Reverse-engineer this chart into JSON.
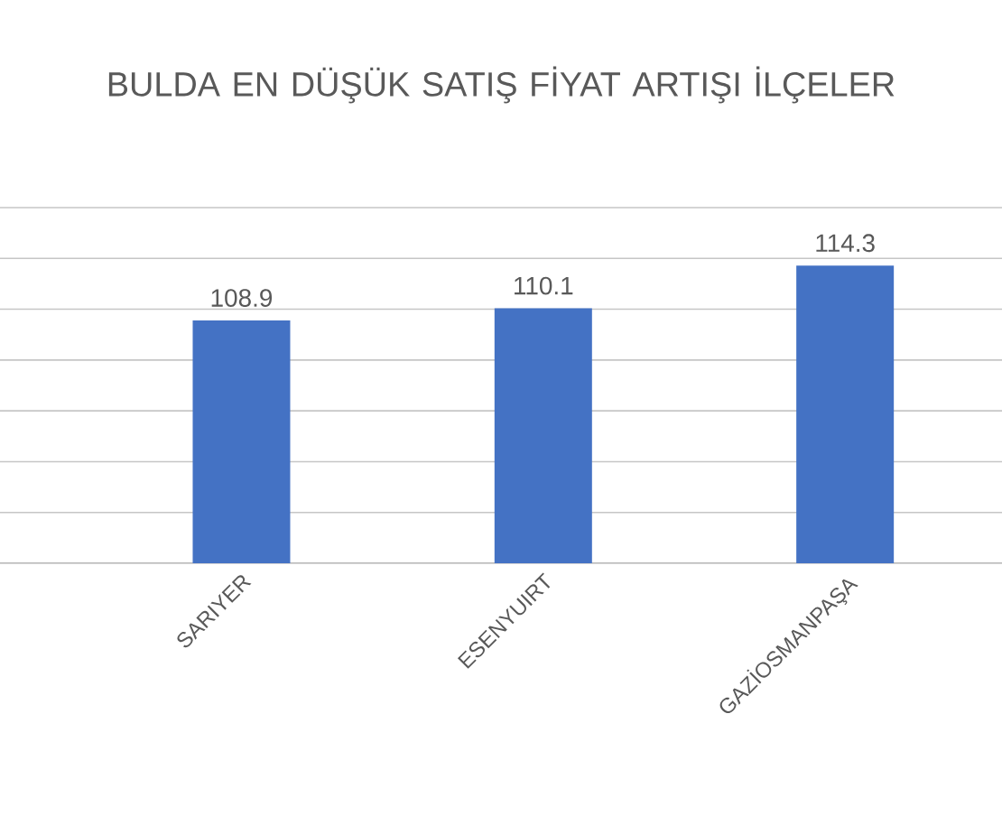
{
  "chart_data": {
    "type": "bar",
    "title": "BULDA EN DÜŞÜK SATIŞ FİYAT ARTIŞI İLÇELER",
    "categories": [
      "SARIYER",
      "ESENYUIRT",
      "GAZİOSMANPAŞA"
    ],
    "values": [
      108.9,
      110.1,
      114.3
    ],
    "color": "#4472c4",
    "data_labels": true,
    "ylim": [
      85,
      120
    ],
    "yticks": [
      {
        "value": 85,
        "label": null
      },
      {
        "value": 90,
        "label": null
      },
      {
        "value": 95,
        "label": null
      },
      {
        "value": 100,
        "label": null
      },
      {
        "value": 105,
        "label": null
      },
      {
        "value": 110,
        "label": null
      },
      {
        "value": 115,
        "label": null
      },
      {
        "value": 120,
        "label": null
      }
    ],
    "tick_labels": "x",
    "grid": "y"
  }
}
